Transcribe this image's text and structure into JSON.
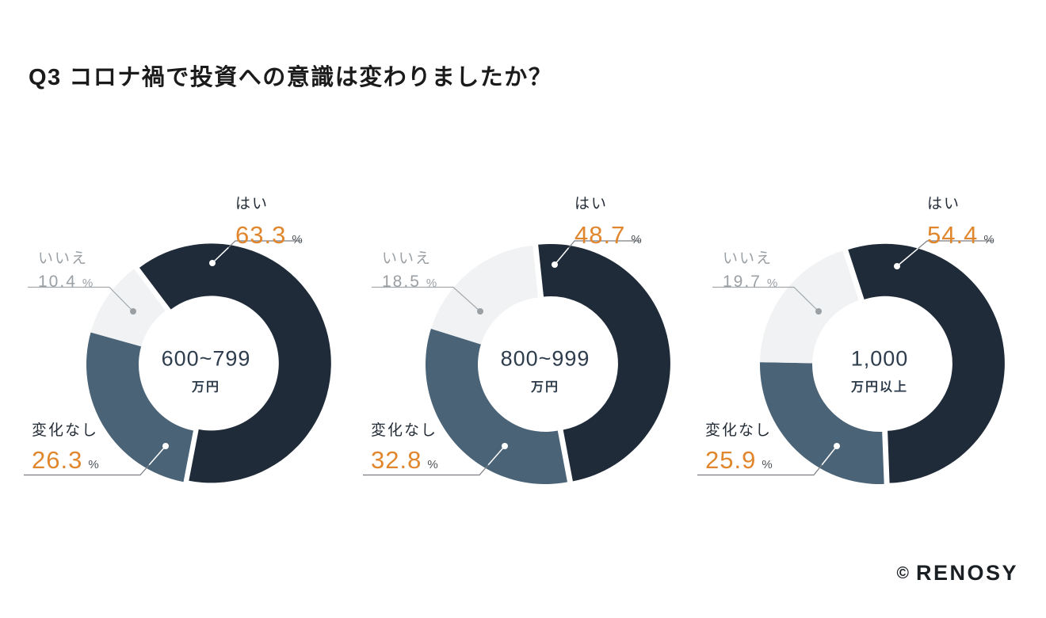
{
  "page": {
    "background_color": "#ffffff"
  },
  "header": {
    "title": "Q3 コロナ禍で投資への意識は変わりましたか？"
  },
  "footer": {
    "copyright": "©",
    "brand": "RENOSY"
  },
  "palette": {
    "yes_color": "#1f2b39",
    "no_change_color": "#4a6377",
    "no_color": "#f0f2f3",
    "accent_orange": "#e0872e",
    "gray_label": "#9ba0a4",
    "dark_label": "#242d37",
    "center_text": "#2e3d4d",
    "leader_dark": "#7a7e83",
    "leader_light": "#a4a9ad",
    "dot_white": "#ffffff",
    "dot_gray": "#9aa0a4"
  },
  "chart_data": [
    {
      "type": "pie",
      "subtype": "donut",
      "group_label_line1": "600~799",
      "group_label_line2": "万円",
      "start_angle_deg": -37,
      "slices": [
        {
          "label": "はい",
          "value": 63.3,
          "unit": "%",
          "color_key": "yes_color"
        },
        {
          "label": "変化なし",
          "value": 26.3,
          "unit": "%",
          "color_key": "no_change_color"
        },
        {
          "label": "いいえ",
          "value": 10.4,
          "unit": "%",
          "color_key": "no_color"
        }
      ]
    },
    {
      "type": "pie",
      "subtype": "donut",
      "group_label_line1": "800~999",
      "group_label_line2": "万円",
      "start_angle_deg": -6,
      "slices": [
        {
          "label": "はい",
          "value": 48.7,
          "unit": "%",
          "color_key": "yes_color"
        },
        {
          "label": "変化なし",
          "value": 32.8,
          "unit": "%",
          "color_key": "no_change_color"
        },
        {
          "label": "いいえ",
          "value": 18.5,
          "unit": "%",
          "color_key": "no_color"
        }
      ]
    },
    {
      "type": "pie",
      "subtype": "donut",
      "group_label_line1": "1,000",
      "group_label_line2": "万円以上",
      "start_angle_deg": -18,
      "slices": [
        {
          "label": "はい",
          "value": 54.4,
          "unit": "%",
          "color_key": "yes_color"
        },
        {
          "label": "変化なし",
          "value": 25.9,
          "unit": "%",
          "color_key": "no_change_color"
        },
        {
          "label": "いいえ",
          "value": 19.7,
          "unit": "%",
          "color_key": "no_color"
        }
      ]
    }
  ]
}
